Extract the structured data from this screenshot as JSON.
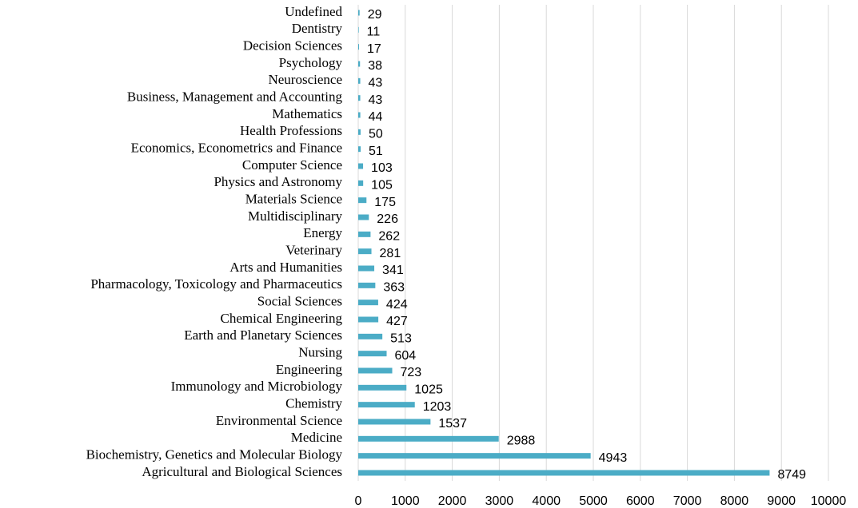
{
  "chart_data": {
    "type": "hbar",
    "categories": [
      "Undefined",
      "Dentistry",
      "Decision Sciences",
      "Psychology",
      "Neuroscience",
      "Business, Management and Accounting",
      "Mathematics",
      "Health Professions",
      "Economics, Econometrics and Finance",
      "Computer Science",
      "Physics and Astronomy",
      "Materials Science",
      "Multidisciplinary",
      "Energy",
      "Veterinary",
      "Arts and Humanities",
      "Pharmacology, Toxicology and Pharmaceutics",
      "Social Sciences",
      "Chemical Engineering",
      "Earth and Planetary Sciences",
      "Nursing",
      "Engineering",
      "Immunology and Microbiology",
      "Chemistry",
      "Environmental Science",
      "Medicine",
      "Biochemistry, Genetics and Molecular Biology",
      "Agricultural and Biological Sciences"
    ],
    "values": [
      29,
      11,
      17,
      38,
      43,
      43,
      44,
      50,
      51,
      103,
      105,
      175,
      226,
      262,
      281,
      341,
      363,
      424,
      427,
      513,
      604,
      723,
      1025,
      1203,
      1537,
      2988,
      4943,
      8749
    ],
    "color": "#4bacc6",
    "xlim": [
      0,
      10000
    ],
    "xticks": [
      0,
      1000,
      2000,
      3000,
      4000,
      5000,
      6000,
      7000,
      8000,
      9000,
      10000
    ],
    "grid": true
  }
}
